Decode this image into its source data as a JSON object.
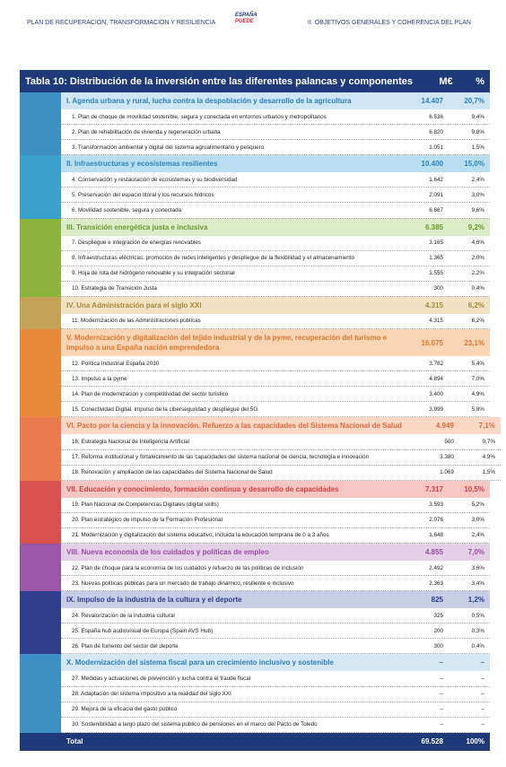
{
  "header": {
    "left": "PLAN DE RECUPERACIÓN, TRANSFORMACION Y RESILIENCIA",
    "logo_top": "ESPAÑA",
    "logo_bottom": "PUEDE",
    "right": "II. OBJETIVOS GENERALES Y COHERENCIA DEL PLAN"
  },
  "table": {
    "title": "Tabla 10: Distribución de la inversión entre las diferentes palancas y componentes",
    "col_amount": "M€",
    "col_pct": "%",
    "groups": [
      {
        "label": "I. Agenda urbana y rural, lucha contra la despoblación y desarrollo de la agricultura",
        "amount": "14.407",
        "pct": "20,7%",
        "color": "#cfe7f4",
        "text_color": "#2a7fc0",
        "icon_color": "#3d8fc6",
        "rows": [
          [
            "1. Plan de choque de movilidad sostenible, segura y conectada en entornos urbanos y metropolitanos",
            "6.536",
            "9,4%"
          ],
          [
            "2. Plan de rehabilitación de vivienda y regeneración urbana",
            "6.820",
            "9,8%"
          ],
          [
            "3. Transformación ambiental y digital del sistema agroalimentario y pesquero",
            "1.051",
            "1,5%"
          ]
        ]
      },
      {
        "label": "II. Infraestructuras y ecosistemas resilientes",
        "amount": "10.400",
        "pct": "15,0%",
        "color": "#b9def0",
        "text_color": "#2a86bf",
        "icon_color": "#3aa0cc",
        "rows": [
          [
            "4. Conservación y restauración de ecosistemas y su biodiversidad",
            "1.642",
            "2,4%"
          ],
          [
            "5. Preservación del espacio litoral y los recursos hídricos",
            "2.091",
            "3,0%"
          ],
          [
            "6. Movilidad sostenible, segura y conectada",
            "6.667",
            "9,6%"
          ]
        ]
      },
      {
        "label": "III. Transición energética justa e inclusiva",
        "amount": "6.385",
        "pct": "9,2%",
        "color": "#dcebc8",
        "text_color": "#6a9a2c",
        "icon_color": "#8bb43e",
        "rows": [
          [
            "7. Despliegue e integración de energías renovables",
            "3.165",
            "4,6%"
          ],
          [
            "8. Infraestructuras eléctricas, promoción de redes inteligentes y despliegue de la flexibilidad y el almacenamiento",
            "1.365",
            "2,0%"
          ],
          [
            "9. Hoja de ruta del hidrógeno renovable y su integración sectorial",
            "1.555",
            "2,2%"
          ],
          [
            "10. Estrategia de Transición Justa",
            "300",
            "0,4%"
          ]
        ]
      },
      {
        "label": "IV. Una Administración para el siglo XXI",
        "amount": "4.315",
        "pct": "6,2%",
        "color": "#efe1c2",
        "text_color": "#a88a3a",
        "icon_color": "#c3a155",
        "rows": [
          [
            "11. Modernización de las Administraciones públicas",
            "4.315",
            "6,2%"
          ]
        ]
      },
      {
        "label": "V. Modernización y digitalización del tejido industrial y de la pyme, recuperación del turismo e impulso a una España nación emprendedora",
        "amount": "16.075",
        "pct": "23,1%",
        "color": "#f9d5b6",
        "text_color": "#d9772a",
        "icon_color": "#e8893a",
        "rows": [
          [
            "12. Política Industrial España 2030",
            "3.782",
            "5,4%"
          ],
          [
            "13. Impulso a la pyme",
            "4.894",
            "7,0%"
          ],
          [
            "14. Plan de modernización y competitividad del sector turístico",
            "3.400",
            "4,9%"
          ],
          [
            "15. Conectividad Digital, impulso de la ciberseguridad y despliegue del 5G",
            "3.999",
            "5,8%"
          ]
        ]
      },
      {
        "label": "VI. Pacto por la ciencia y la innovación. Refuerzo a las capacidades del Sistema Nacional de Salud",
        "amount": "4.949",
        "pct": "7,1%",
        "color": "#fad8c5",
        "text_color": "#e06a3c",
        "icon_color": "#e97a4c",
        "rows": [
          [
            "16. Estrategia Nacional de Inteligencia Artificial",
            "500",
            "0,7%"
          ],
          [
            "17. Reforma institucional y fortalecimiento de las capacidades del sistema nacional de ciencia, tecnología e innovación",
            "3.380",
            "4,9%"
          ],
          [
            "18. Renovación y ampliación de las capacidades del Sistema Nacional de Salud",
            "1.069",
            "1,5%"
          ]
        ]
      },
      {
        "label": "VII. Educación y conocimiento, formación continua y desarrollo de capacidades",
        "amount": "7.317",
        "pct": "10,5%",
        "color": "#f5c6c4",
        "text_color": "#d6403e",
        "icon_color": "#d9524f",
        "rows": [
          [
            "19. Plan Nacional de Competencias Digitales (digital skills)",
            "3.593",
            "5,2%"
          ],
          [
            "20. Plan estratégico de impulso de la Formación Profesional",
            "2.076",
            "3,0%"
          ],
          [
            "21. Modernización y digitalización del sistema educativo, incluida la educación temprana de 0 a 3 años",
            "1.648",
            "2,4%"
          ]
        ]
      },
      {
        "label": "VIII. Nueva economía de los cuidados y políticas de empleo",
        "amount": "4.855",
        "pct": "7,0%",
        "color": "#e3cfe6",
        "text_color": "#9a4ba6",
        "icon_color": "#9c56a8",
        "rows": [
          [
            "22. Plan de choque para la economía de los cuidados y refuerzo de las políticas de inclusión",
            "2.492",
            "3,6%"
          ],
          [
            "23. Nuevas políticas públicas para un mercado de trabajo dinámico, resiliente e inclusivo",
            "2.363",
            "3,4%"
          ]
        ]
      },
      {
        "label": "IX. Impulso de la industria de la cultura y el deporte",
        "amount": "825",
        "pct": "1,2%",
        "color": "#c8cde6",
        "text_color": "#2e3f8c",
        "icon_color": "#2f3f8d",
        "rows": [
          [
            "24. Revalorización de la industria cultural",
            "325",
            "0,5%"
          ],
          [
            "25. España hub audiovisual de Europa (Spain AVS Hub)",
            "200",
            "0,3%"
          ],
          [
            "26. Plan de fomento del sector del deporte",
            "300",
            "0,4%"
          ]
        ]
      },
      {
        "label": "X. Modernización del sistema fiscal para un crecimiento inclusivo y sostenible",
        "amount": "–",
        "pct": "–",
        "color": "#d5e7f3",
        "text_color": "#2a7fc0",
        "icon_color": "#3d8fc6",
        "rows": [
          [
            "27. Medidas y actuaciones de prevención y lucha contra el fraude fiscal",
            "–",
            "–"
          ],
          [
            "28. Adaptación del sistema impositivo a la realidad del siglo XXI",
            "–",
            "–"
          ],
          [
            "29. Mejora de la eficacia del gasto público",
            "–",
            "–"
          ],
          [
            "30. Sostenibilidad a largo plazo del sistema público de pensiones en el marco del Pacto de Toledo",
            "–",
            "–"
          ]
        ]
      }
    ],
    "total": {
      "label": "Total",
      "amount": "69.528",
      "pct": "100%"
    }
  }
}
